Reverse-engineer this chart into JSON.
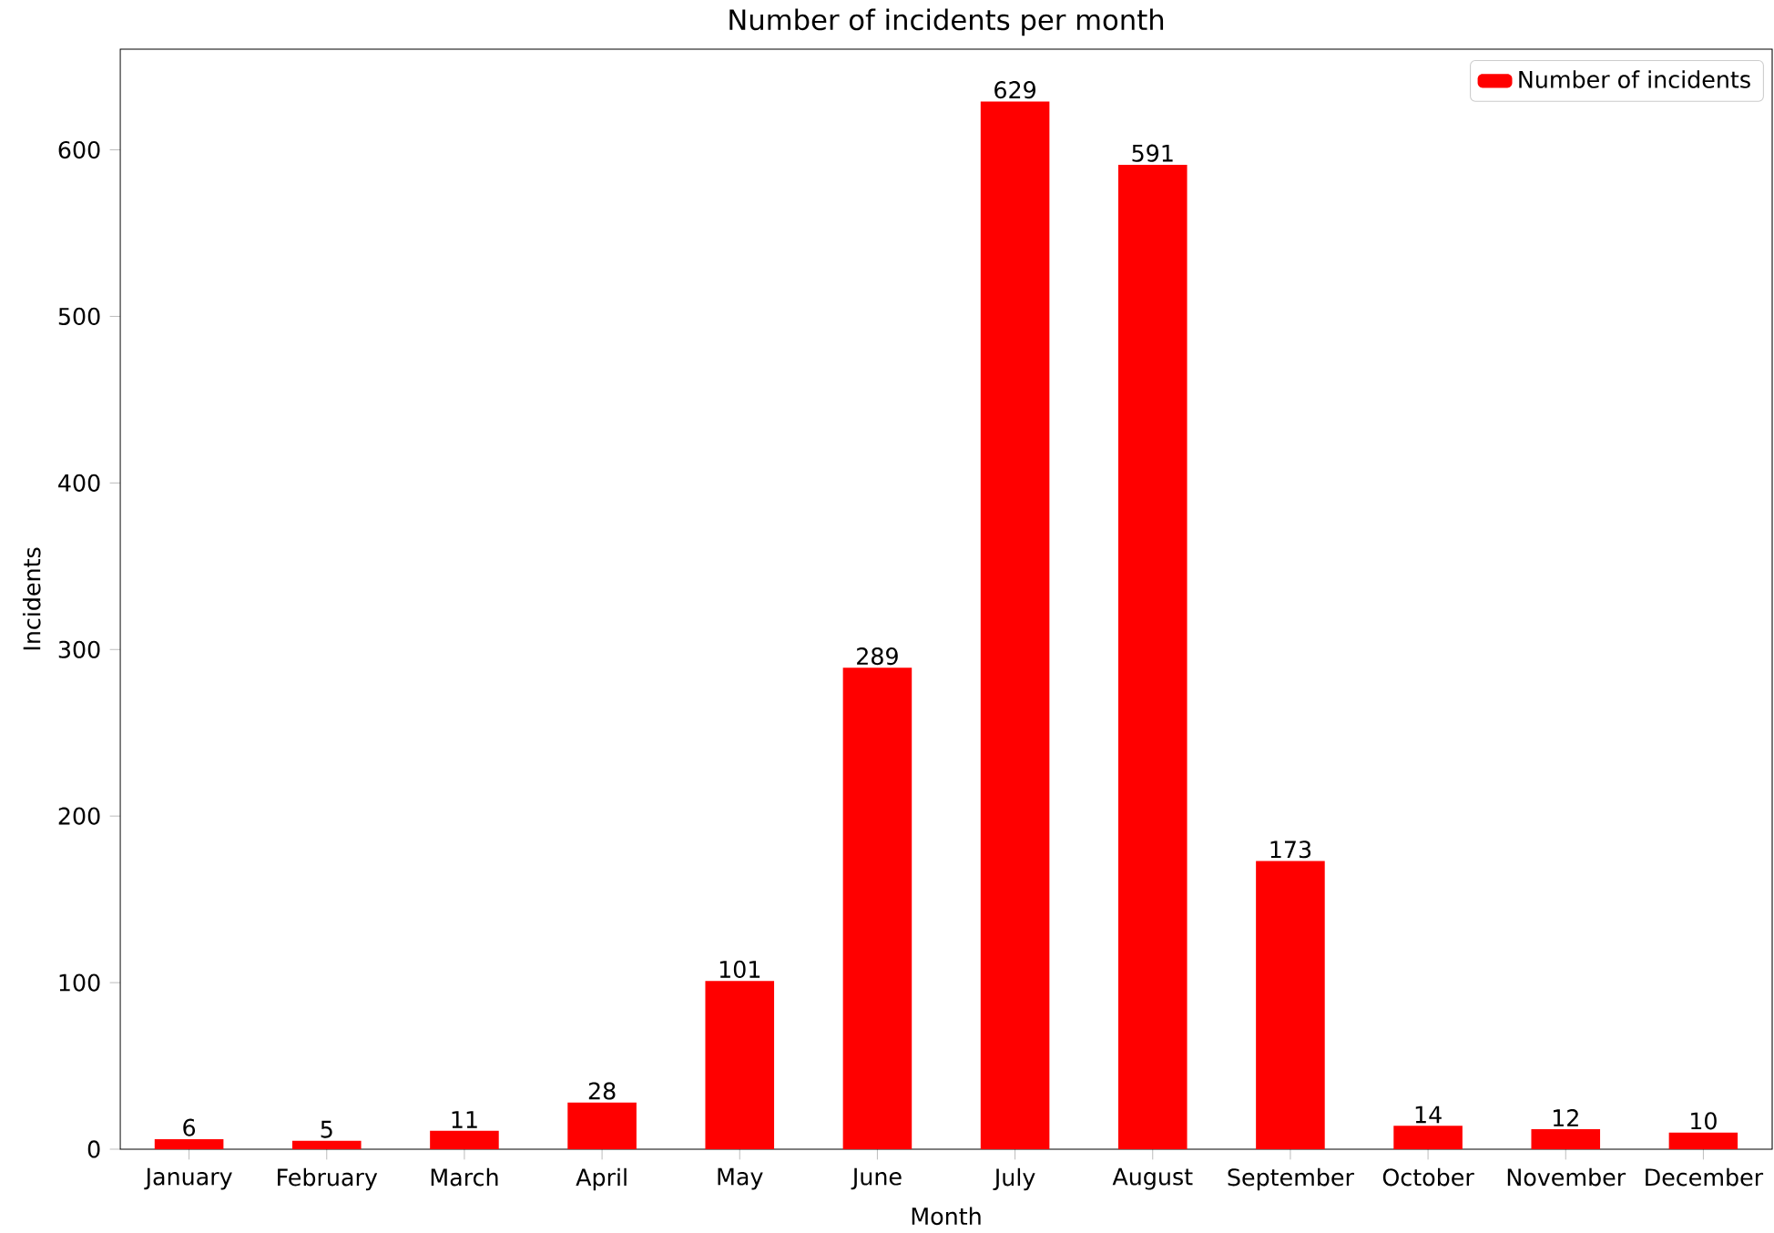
{
  "chart_data": {
    "type": "bar",
    "title": "Number of incidents per month",
    "xlabel": "Month",
    "ylabel": "Incidents",
    "categories": [
      "January",
      "February",
      "March",
      "April",
      "May",
      "June",
      "July",
      "August",
      "September",
      "October",
      "November",
      "December"
    ],
    "series": [
      {
        "name": "Number of incidents",
        "color": "#ff0000",
        "values": [
          6,
          5,
          11,
          28,
          101,
          289,
          629,
          591,
          173,
          14,
          12,
          10
        ]
      }
    ],
    "ylim": [
      0,
      660.45
    ],
    "yticks": [
      0,
      100,
      200,
      300,
      400,
      500,
      600
    ],
    "data_labels": true,
    "legend": "top right",
    "grid": false
  }
}
